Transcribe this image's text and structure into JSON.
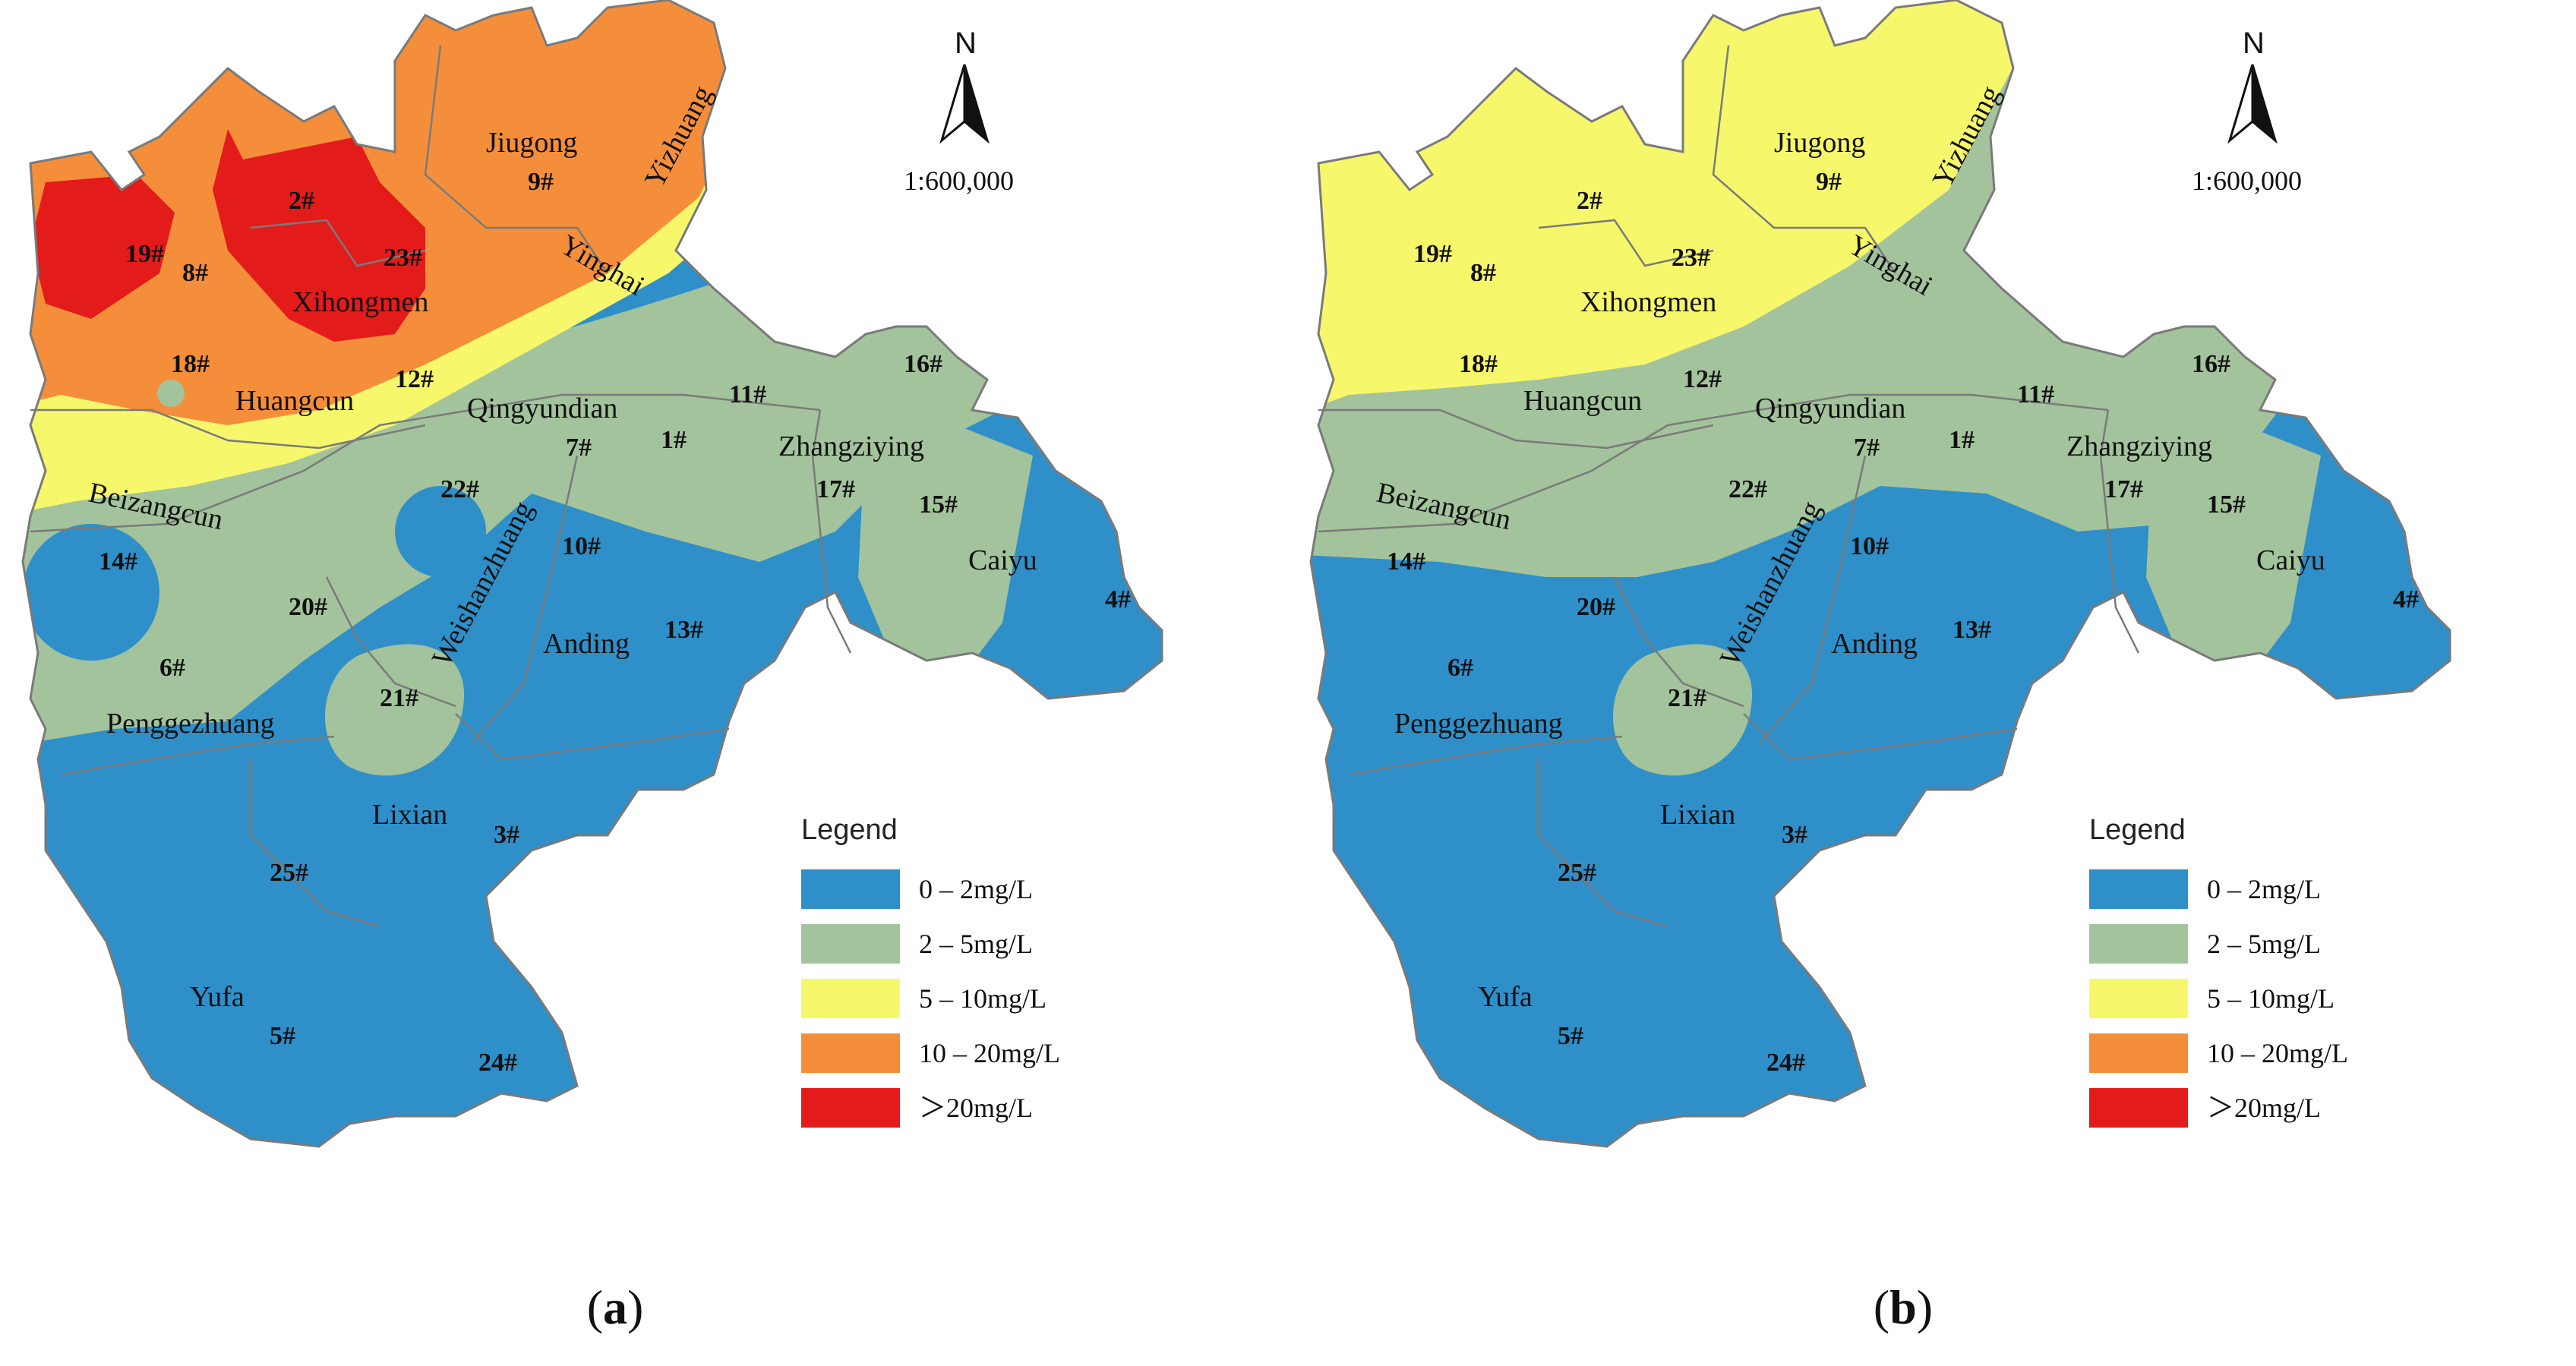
{
  "colors": {
    "c0": "#2f8fc9",
    "c1": "#a3c39c",
    "c2": "#f7f76c",
    "c3": "#f58e3b",
    "c4": "#e31b1b",
    "boundary": "#7a7a7a"
  },
  "legend": {
    "title": "Legend",
    "items": [
      {
        "label": "0 – 2mg/L",
        "color": "#2f8fc9"
      },
      {
        "label": "2 – 5mg/L",
        "color": "#a3c39c"
      },
      {
        "label": "5 – 10mg/L",
        "color": "#f7f76c"
      },
      {
        "label": "10 – 20mg/L",
        "color": "#f58e3b"
      },
      {
        "label": "＞20mg/L",
        "color": "#e31b1b"
      }
    ]
  },
  "north_arrow": {
    "letter": "N",
    "icon": "north-arrow-icon"
  },
  "scale": "1:600,000",
  "places": [
    "Jiugong",
    "Yizhuang",
    "Xihongmen",
    "Yinghai",
    "Huangcun",
    "Qingyundian",
    "Zhangziying",
    "Beizangcun",
    "Weishanzhuang",
    "Caiyu",
    "Anding",
    "Penggezhuang",
    "Lixian",
    "Yufa"
  ],
  "stations": [
    "1#",
    "2#",
    "3#",
    "4#",
    "5#",
    "6#",
    "7#",
    "8#",
    "9#",
    "10#",
    "11#",
    "12#",
    "13#",
    "14#",
    "15#",
    "16#",
    "17#",
    "18#",
    "19#",
    "20#",
    "21#",
    "22#",
    "23#",
    "24#",
    "25#"
  ],
  "panels": [
    {
      "id": "a",
      "letter": "a",
      "open": "(",
      "close": ")"
    },
    {
      "id": "b",
      "letter": "b",
      "open": "(",
      "close": ")"
    }
  ]
}
